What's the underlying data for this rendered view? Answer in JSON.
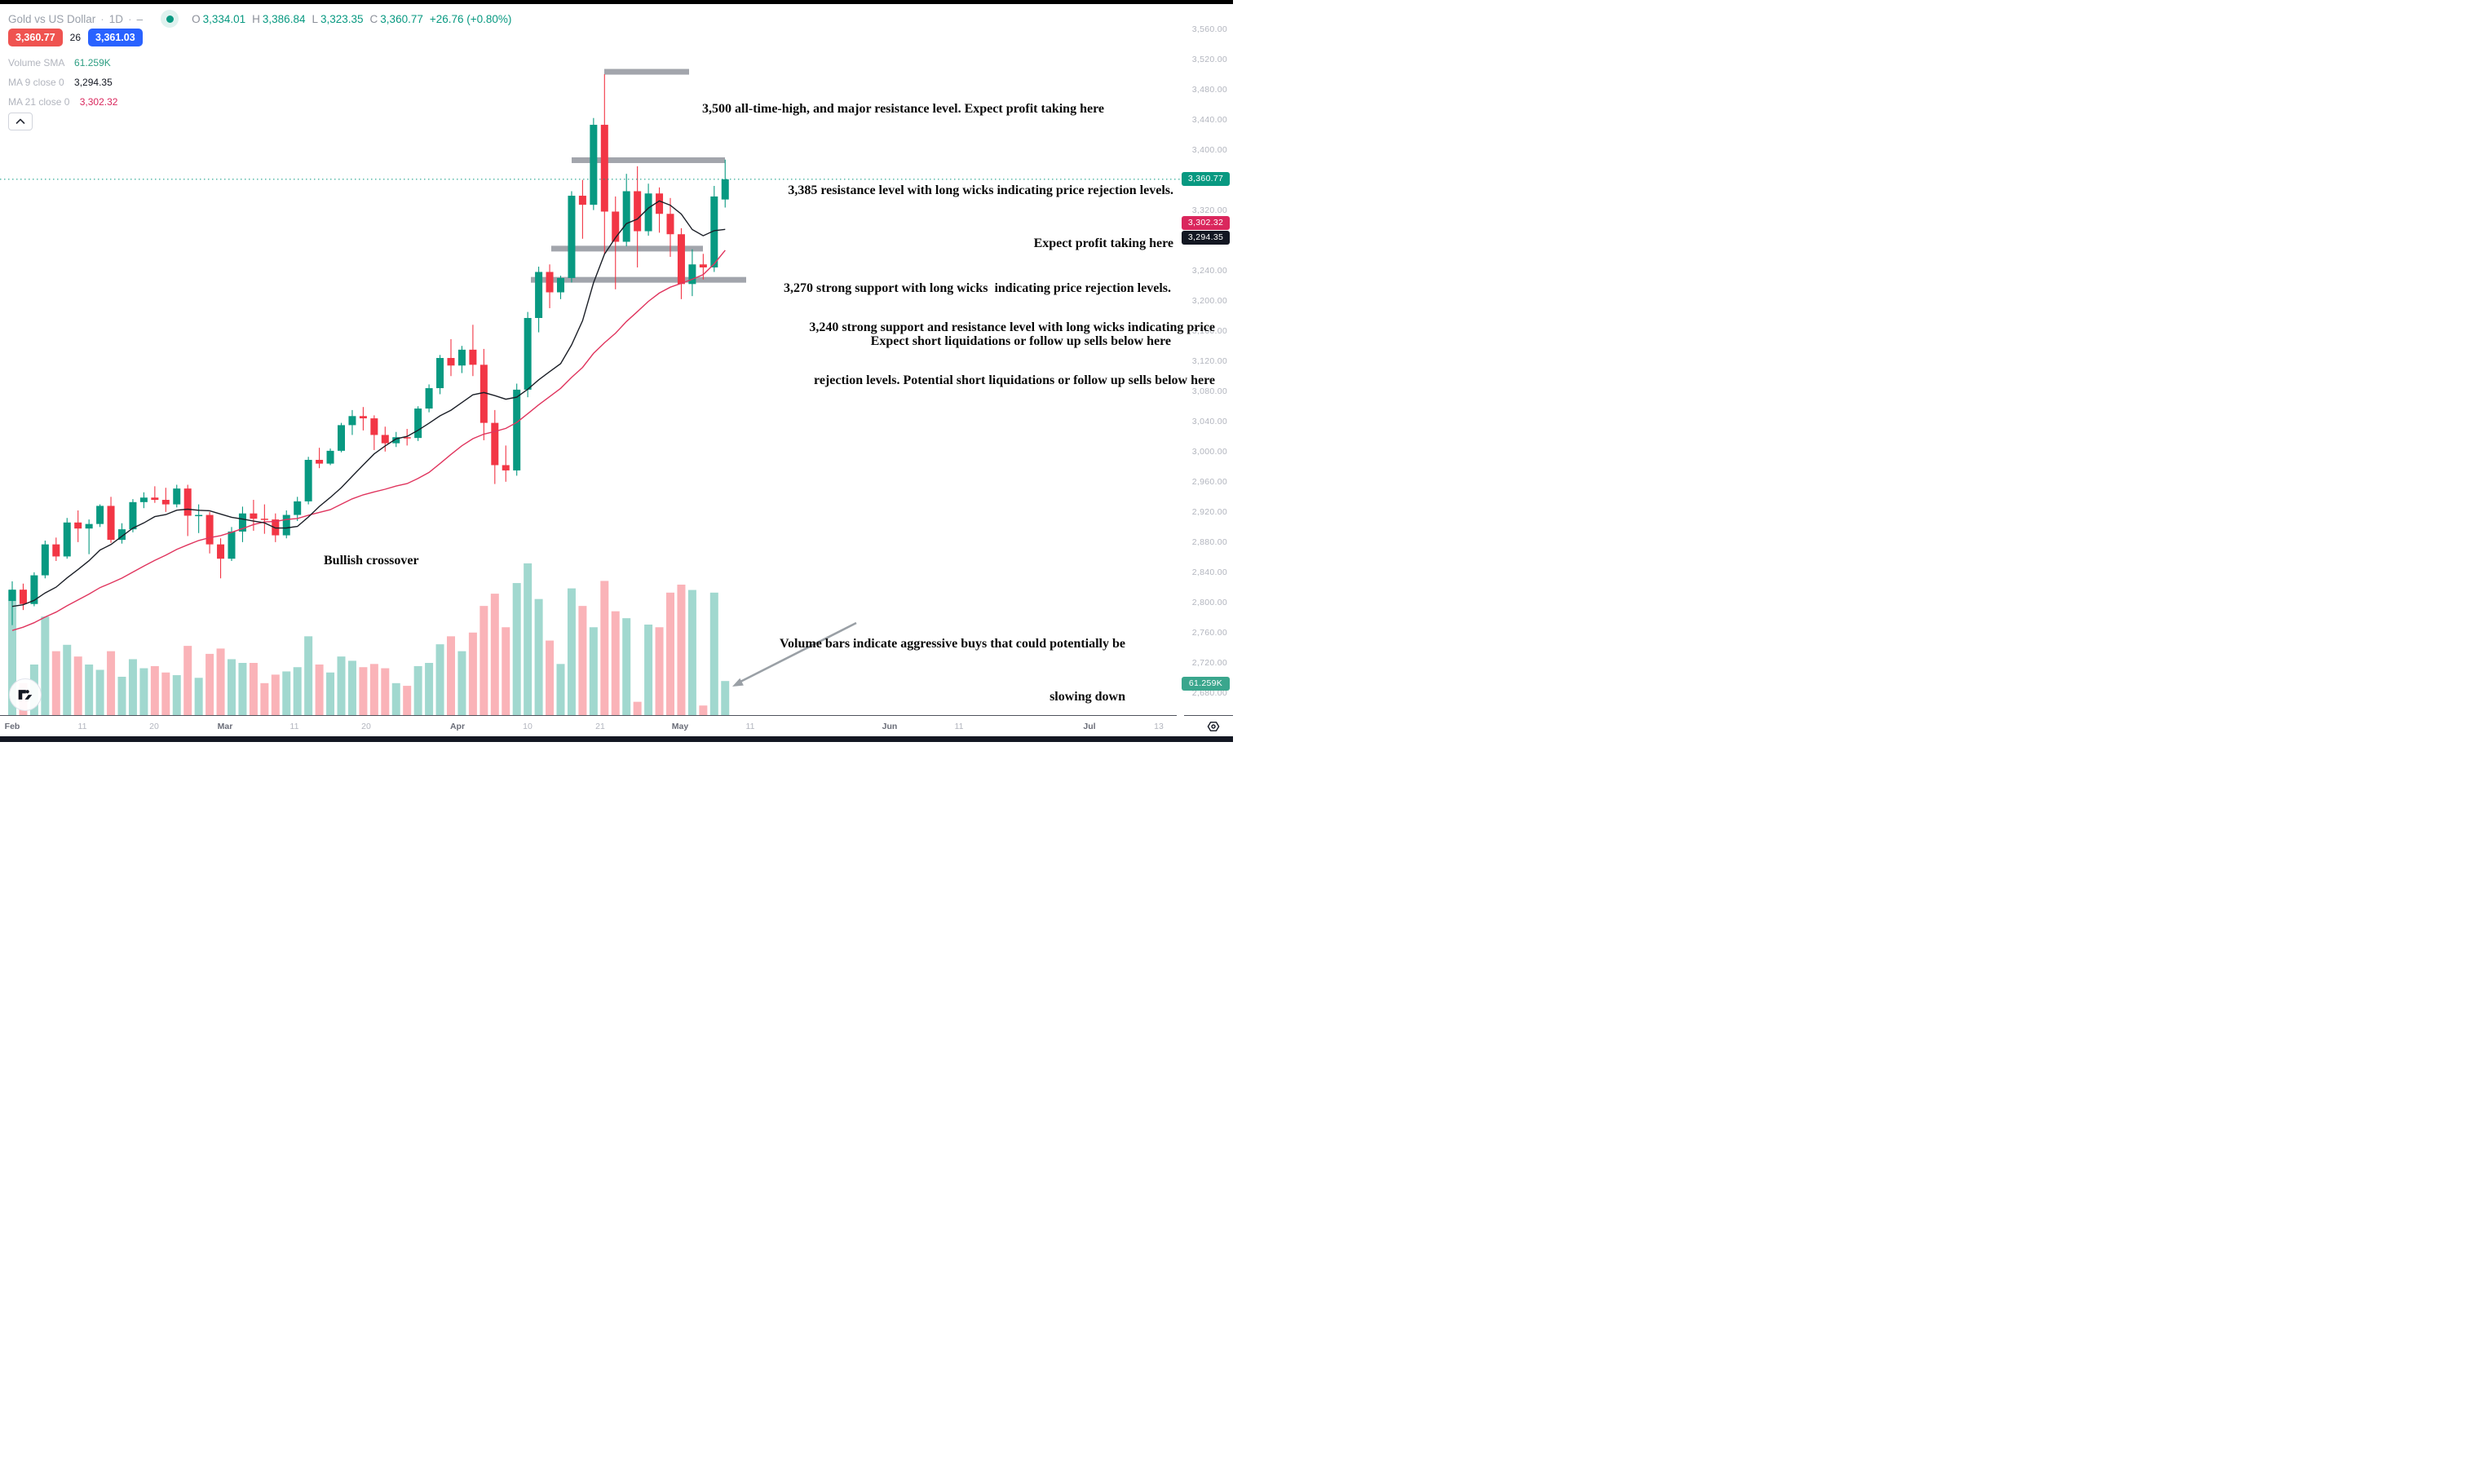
{
  "header": {
    "symbol_title": "Gold vs US Dollar",
    "separator": "·",
    "interval": "1D",
    "suffix": "–",
    "market_status": "open",
    "ohlc": {
      "o_label": "O",
      "o": "3,334.01",
      "h_label": "H",
      "h": "3,386.84",
      "l_label": "L",
      "l": "3,323.35",
      "c_label": "C",
      "c": "3,360.77",
      "change": "+26.76 (+0.80%)"
    },
    "bid": "3,360.77",
    "spread": "26",
    "ask": "3,361.03"
  },
  "indicators": [
    {
      "name": "Volume SMA",
      "value": "61.259K",
      "value_color": "#2e9e83"
    },
    {
      "name": "MA 9 close 0",
      "value": "3,294.35",
      "value_color": "#131722"
    },
    {
      "name": "MA 21 close 0",
      "value": "3,302.32",
      "value_color": "#da275d"
    }
  ],
  "annotations": {
    "ath": {
      "line1": "3,500 all-time-high, and major resistance level. Expect profit taking here"
    },
    "r3385": {
      "line1": "3,385 resistance level with long wicks indicating price rejection levels.",
      "line2": "Expect profit taking here"
    },
    "s3270": {
      "line1": "3,270 strong support with long wicks  indicating price rejection levels.",
      "line2": "Expect short liquidations or follow up sells below here"
    },
    "s3240": {
      "line1": "3,240 strong support and resistance level with long wicks indicating price",
      "line2": "rejection levels. Potential short liquidations or follow up sells below here"
    },
    "bullish": {
      "line1": "Bullish crossover"
    },
    "volume": {
      "line1": "Volume bars indicate aggressive buys that could potentially be",
      "line2": "slowing down"
    }
  },
  "price_axis_badges": {
    "close": {
      "text": "3,360.77",
      "color": "#089981",
      "price": 3360.77
    },
    "ma21": {
      "text": "3,302.32",
      "color": "#da275d",
      "price": 3302.32
    },
    "ma9": {
      "text": "3,294.35",
      "color": "#131722",
      "price": 3294.35
    },
    "volume": {
      "text": "61.259K",
      "color": "#3aa68d"
    }
  },
  "chart_data": {
    "type": "candlestick",
    "title": "Gold vs US Dollar",
    "interval": "1D",
    "grid": false,
    "y_axis": {
      "min": 2660,
      "max": 3580,
      "tick_step": 40,
      "ticks": [
        {
          "label": "3,560.00",
          "price": 3560
        },
        {
          "label": "3,520.00",
          "price": 3520
        },
        {
          "label": "3,480.00",
          "price": 3480
        },
        {
          "label": "3,440.00",
          "price": 3440
        },
        {
          "label": "3,400.00",
          "price": 3400
        },
        {
          "label": "3,320.00",
          "price": 3320
        },
        {
          "label": "3,240.00",
          "price": 3240
        },
        {
          "label": "3,200.00",
          "price": 3200
        },
        {
          "label": "3,160.00",
          "price": 3160
        },
        {
          "label": "3,120.00",
          "price": 3120
        },
        {
          "label": "3,080.00",
          "price": 3080
        },
        {
          "label": "3,040.00",
          "price": 3040
        },
        {
          "label": "3,000.00",
          "price": 3000
        },
        {
          "label": "2,960.00",
          "price": 2960
        },
        {
          "label": "2,920.00",
          "price": 2920
        },
        {
          "label": "2,880.00",
          "price": 2880
        },
        {
          "label": "2,840.00",
          "price": 2840
        },
        {
          "label": "2,800.00",
          "price": 2800
        },
        {
          "label": "2,760.00",
          "price": 2760
        },
        {
          "label": "2,720.00",
          "price": 2720
        },
        {
          "label": "2,680.00",
          "price": 2680
        }
      ]
    },
    "x_axis": {
      "ticks": [
        {
          "label": "Feb",
          "major": true
        },
        {
          "label": "11",
          "major": false
        },
        {
          "label": "20",
          "major": false
        },
        {
          "label": "Mar",
          "major": true
        },
        {
          "label": "11",
          "major": false
        },
        {
          "label": "20",
          "major": false
        },
        {
          "label": "Apr",
          "major": true
        },
        {
          "label": "10",
          "major": false
        },
        {
          "label": "21",
          "major": false
        },
        {
          "label": "May",
          "major": true
        },
        {
          "label": "11",
          "major": false
        },
        {
          "label": "Jun",
          "major": true
        },
        {
          "label": "11",
          "major": false
        },
        {
          "label": "Jul",
          "major": true
        },
        {
          "label": "13",
          "major": false
        }
      ]
    },
    "close_line_price": 3360.77,
    "colors": {
      "up": "#089981",
      "down": "#f23645",
      "vol_up": "rgba(8,153,129,0.38)",
      "vol_down": "rgba(242,54,69,0.38)",
      "ma9": "#1b1f27",
      "ma21": "#e0355e",
      "level_bar": "#9da0a8",
      "arrow": "#9aa0a6"
    },
    "levels": [
      {
        "price": 3500,
        "note": "all-time-high resistance"
      },
      {
        "price": 3385,
        "note": "resistance with long wicks"
      },
      {
        "price": 3270,
        "note": "strong support with long wicks"
      },
      {
        "price": 3240,
        "note": "strong support and resistance"
      }
    ],
    "series": [
      {
        "name": "MA 9",
        "type": "sma",
        "length": 9,
        "color": "#1b1f27"
      },
      {
        "name": "MA 21",
        "type": "sma",
        "length": 21,
        "color": "#e0355e"
      }
    ],
    "volume_sma_k": 61.259,
    "candles": [
      [
        2802,
        2828,
        2770,
        2817,
        235
      ],
      [
        2817,
        2825,
        2790,
        2798,
        60
      ],
      [
        2798,
        2840,
        2795,
        2836,
        95
      ],
      [
        2836,
        2882,
        2832,
        2877,
        185
      ],
      [
        2877,
        2886,
        2855,
        2861,
        120
      ],
      [
        2861,
        2912,
        2858,
        2906,
        132
      ],
      [
        2906,
        2922,
        2880,
        2898,
        110
      ],
      [
        2898,
        2910,
        2864,
        2904,
        95
      ],
      [
        2904,
        2930,
        2900,
        2928,
        85
      ],
      [
        2928,
        2940,
        2879,
        2883,
        120
      ],
      [
        2883,
        2905,
        2878,
        2897,
        72
      ],
      [
        2897,
        2937,
        2893,
        2933,
        105
      ],
      [
        2933,
        2946,
        2925,
        2939,
        88
      ],
      [
        2939,
        2954,
        2932,
        2936,
        92
      ],
      [
        2936,
        2952,
        2920,
        2930,
        80
      ],
      [
        2930,
        2956,
        2926,
        2951,
        75
      ],
      [
        2951,
        2956,
        2888,
        2915,
        130
      ],
      [
        2915,
        2930,
        2892,
        2916,
        70
      ],
      [
        2916,
        2920,
        2865,
        2877,
        115
      ],
      [
        2877,
        2885,
        2832,
        2858,
        125
      ],
      [
        2858,
        2900,
        2855,
        2894,
        105
      ],
      [
        2894,
        2927,
        2880,
        2918,
        98
      ],
      [
        2918,
        2936,
        2895,
        2911,
        98
      ],
      [
        2911,
        2930,
        2891,
        2910,
        60
      ],
      [
        2910,
        2918,
        2880,
        2889,
        76
      ],
      [
        2889,
        2922,
        2885,
        2916,
        82
      ],
      [
        2916,
        2940,
        2908,
        2934,
        90
      ],
      [
        2934,
        2993,
        2930,
        2989,
        148
      ],
      [
        2989,
        3005,
        2978,
        2984,
        95
      ],
      [
        2984,
        3004,
        2982,
        3001,
        80
      ],
      [
        3001,
        3038,
        2999,
        3035,
        110
      ],
      [
        3035,
        3055,
        3022,
        3047,
        102
      ],
      [
        3047,
        3059,
        3028,
        3044,
        90
      ],
      [
        3044,
        3048,
        3002,
        3022,
        96
      ],
      [
        3022,
        3033,
        3000,
        3011,
        88
      ],
      [
        3011,
        3026,
        3006,
        3019,
        60
      ],
      [
        3019,
        3030,
        3008,
        3018,
        55
      ],
      [
        3018,
        3060,
        3014,
        3057,
        92
      ],
      [
        3057,
        3089,
        3052,
        3084,
        98
      ],
      [
        3084,
        3128,
        3076,
        3124,
        133
      ],
      [
        3124,
        3149,
        3100,
        3114,
        148
      ],
      [
        3114,
        3140,
        3104,
        3135,
        120
      ],
      [
        3135,
        3168,
        3100,
        3115,
        155
      ],
      [
        3115,
        3136,
        3015,
        3038,
        205
      ],
      [
        3038,
        3055,
        2957,
        2982,
        228
      ],
      [
        2982,
        3008,
        2960,
        2975,
        165
      ],
      [
        2975,
        3090,
        2968,
        3082,
        248
      ],
      [
        3082,
        3185,
        3072,
        3177,
        285
      ],
      [
        3177,
        3245,
        3158,
        3238,
        218
      ],
      [
        3238,
        3248,
        3190,
        3211,
        140
      ],
      [
        3211,
        3233,
        3202,
        3230,
        96
      ],
      [
        3230,
        3345,
        3224,
        3339,
        238
      ],
      [
        3339,
        3360,
        3282,
        3327,
        205
      ],
      [
        3327,
        3442,
        3320,
        3433,
        165
      ],
      [
        3433,
        3500,
        3262,
        3318,
        252
      ],
      [
        3318,
        3338,
        3215,
        3278,
        195
      ],
      [
        3278,
        3368,
        3272,
        3345,
        182
      ],
      [
        3345,
        3378,
        3244,
        3292,
        25
      ],
      [
        3292,
        3355,
        3286,
        3342,
        170
      ],
      [
        3342,
        3350,
        3290,
        3315,
        165
      ],
      [
        3315,
        3336,
        3258,
        3288,
        230
      ],
      [
        3288,
        3296,
        3202,
        3222,
        245
      ],
      [
        3222,
        3268,
        3206,
        3248,
        235
      ],
      [
        3248,
        3262,
        3228,
        3244,
        18
      ],
      [
        3244,
        3352,
        3238,
        3338,
        230
      ],
      [
        3334.01,
        3386.84,
        3323.35,
        3360.77,
        64
      ]
    ]
  }
}
